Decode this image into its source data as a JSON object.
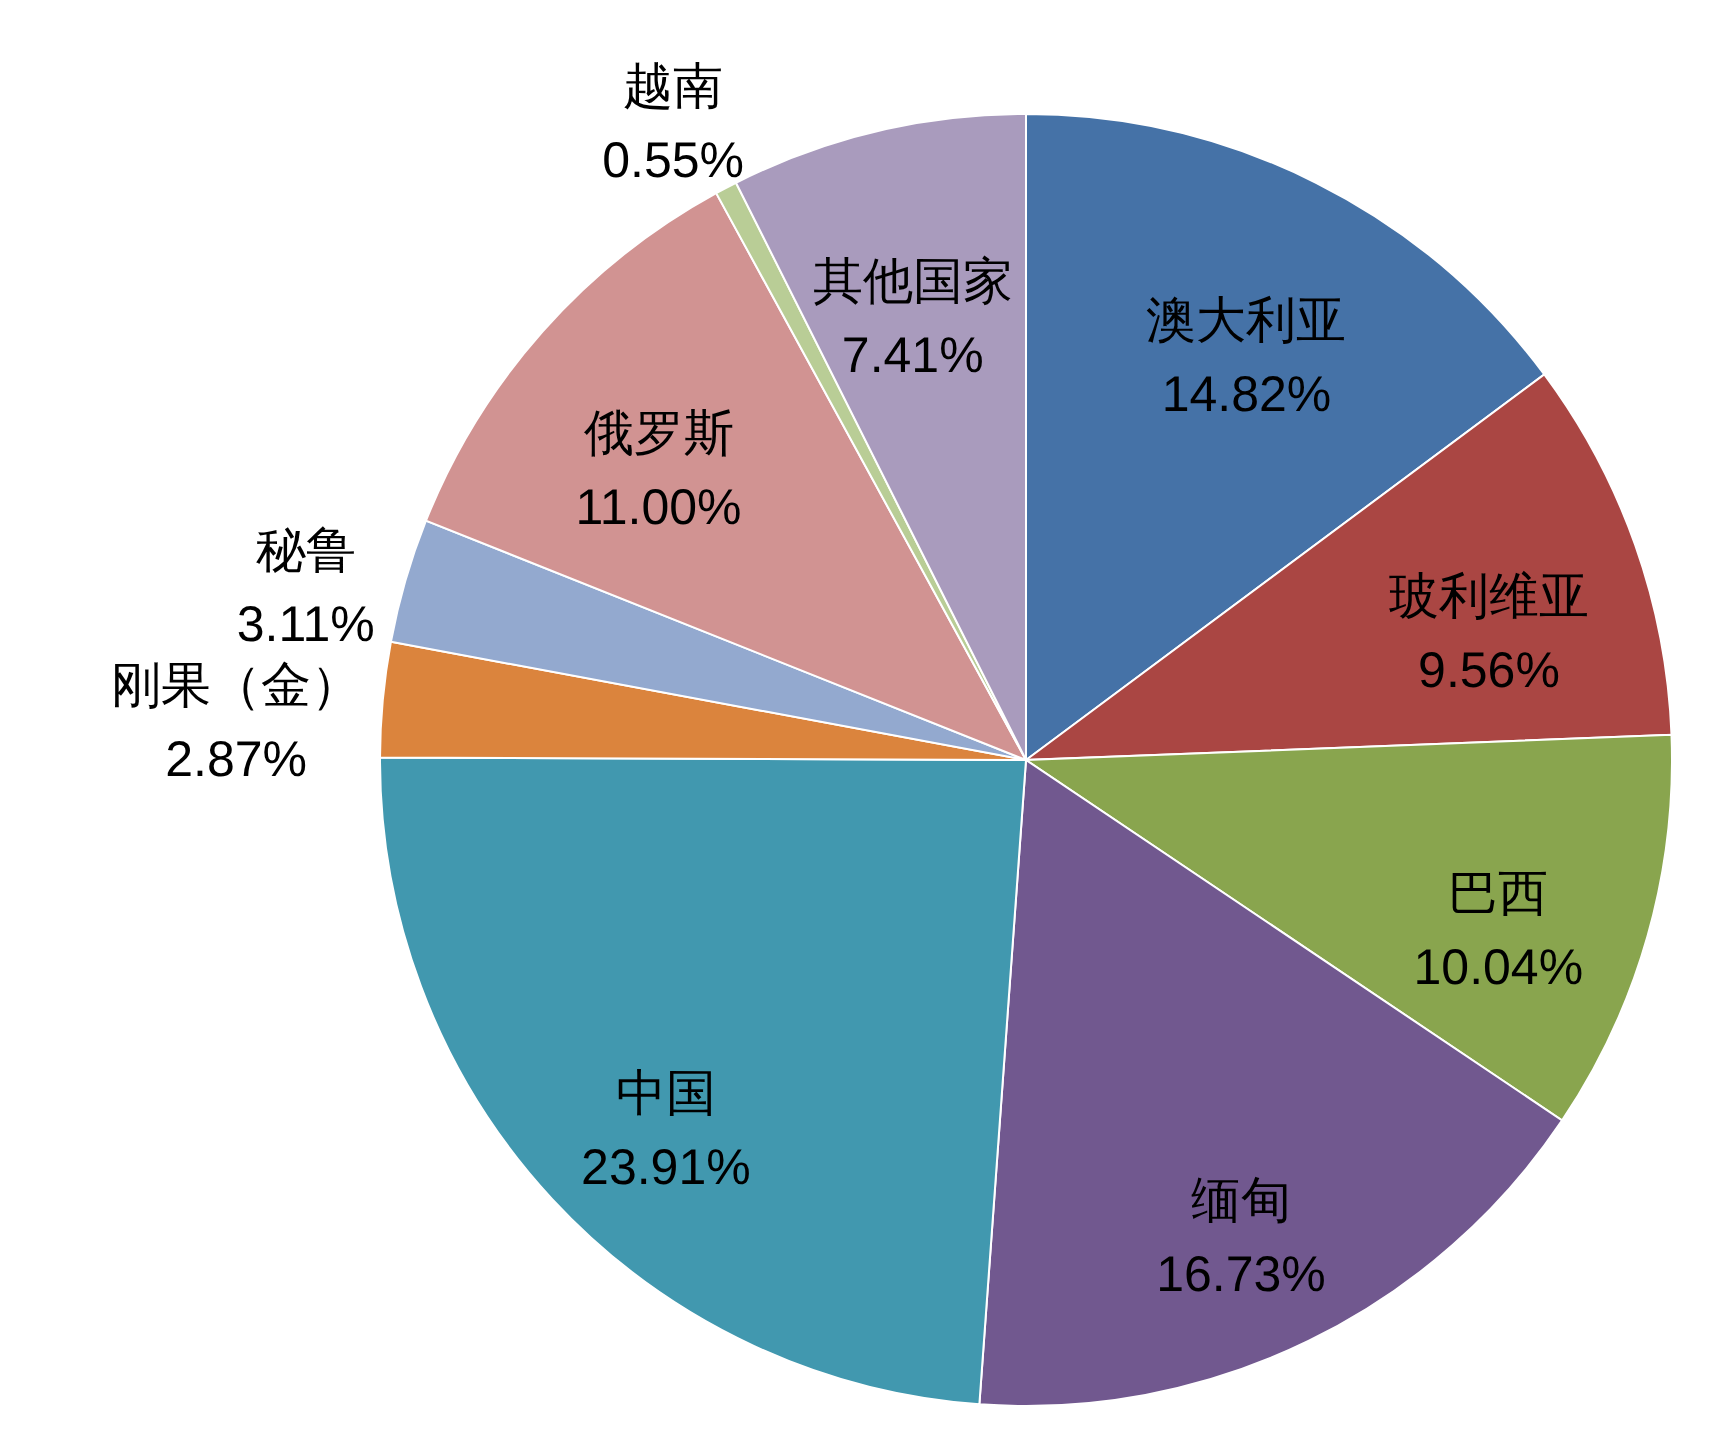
{
  "chart_data": {
    "type": "pie",
    "categories": [
      "澳大利亚",
      "玻利维亚",
      "巴西",
      "缅甸",
      "中国",
      "刚果（金）",
      "秘鲁",
      "俄罗斯",
      "越南",
      "其他国家"
    ],
    "values": [
      14.82,
      9.56,
      10.04,
      16.73,
      23.91,
      2.87,
      3.11,
      11.0,
      0.55,
      7.41
    ],
    "value_labels": [
      "14.82%",
      "9.56%",
      "10.04%",
      "16.73%",
      "23.91%",
      "2.87%",
      "3.11%",
      "11.00%",
      "0.55%",
      "7.41%"
    ],
    "colors": [
      "#4572a7",
      "#aa4643",
      "#89a54e",
      "#71588f",
      "#4198af",
      "#db843d",
      "#93a9cf",
      "#d19392",
      "#b9cd96",
      "#a99bbd"
    ]
  }
}
